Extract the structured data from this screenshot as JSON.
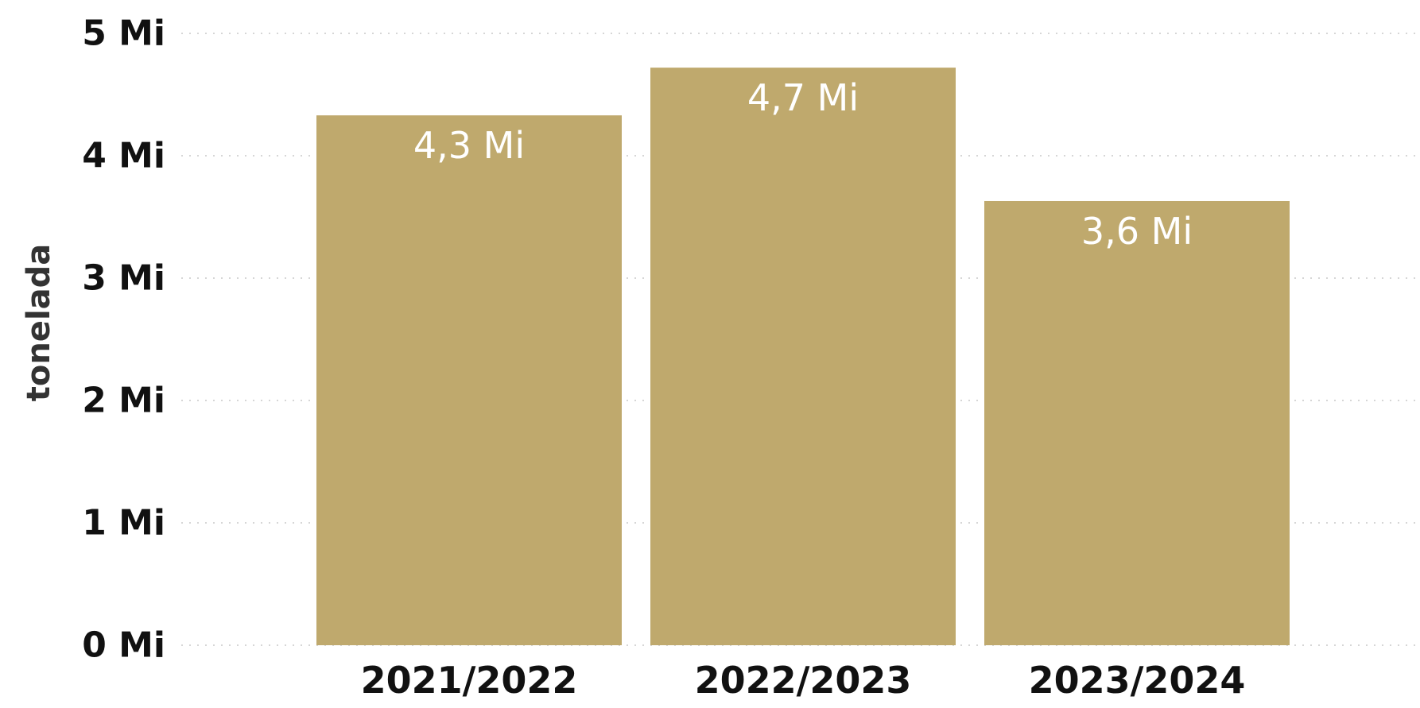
{
  "chart_data": {
    "type": "bar",
    "categories": [
      "2021/2022",
      "2022/2023",
      "2023/2024"
    ],
    "values": [
      4.33,
      4.72,
      3.63
    ],
    "data_labels": [
      "4,3 Mi",
      "4,7 Mi",
      "3,6 Mi"
    ],
    "ylabel": "tonelada",
    "xlabel": "",
    "ylim": [
      0,
      5
    ],
    "yticks": [
      0,
      1,
      2,
      3,
      4,
      5
    ],
    "ytick_labels": [
      "0 Mi",
      "1 Mi",
      "2 Mi",
      "3 Mi",
      "4 Mi",
      "5 Mi"
    ],
    "grid": true,
    "bar_color": "#bfa96d",
    "label_color": "#ffffff"
  }
}
